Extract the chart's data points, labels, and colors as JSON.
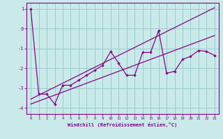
{
  "xlabel": "Windchill (Refroidissement éolien,°C)",
  "bg_color": "#caeaea",
  "line_color": "#880088",
  "grid_color": "#99cccc",
  "x_data": [
    0,
    1,
    2,
    3,
    4,
    5,
    6,
    7,
    8,
    9,
    10,
    11,
    12,
    13,
    14,
    15,
    16,
    17,
    18,
    19,
    20,
    21,
    22,
    23
  ],
  "y_main": [
    1.0,
    -3.3,
    -3.3,
    -3.8,
    -2.85,
    -2.85,
    -2.6,
    -2.35,
    -2.1,
    -1.85,
    -1.15,
    -1.75,
    -2.35,
    -2.35,
    -1.2,
    -1.2,
    -0.1,
    -2.25,
    -2.15,
    -1.55,
    -1.4,
    -1.1,
    -1.15,
    -1.35
  ],
  "y_upper": [
    -3.55,
    -3.35,
    -3.15,
    -2.95,
    -2.75,
    -2.55,
    -2.35,
    -2.15,
    -1.95,
    -1.75,
    -1.55,
    -1.35,
    -1.15,
    -0.95,
    -0.75,
    -0.55,
    -0.35,
    -0.15,
    0.05,
    0.25,
    0.45,
    0.65,
    0.85,
    1.05
  ],
  "y_lower": [
    -3.8,
    -3.65,
    -3.5,
    -3.35,
    -3.2,
    -3.05,
    -2.9,
    -2.75,
    -2.6,
    -2.45,
    -2.3,
    -2.15,
    -2.0,
    -1.85,
    -1.7,
    -1.55,
    -1.4,
    -1.25,
    -1.1,
    -0.95,
    -0.8,
    -0.65,
    -0.5,
    -0.35
  ],
  "ylim": [
    -4.3,
    1.3
  ],
  "xlim": [
    -0.5,
    23.5
  ],
  "yticks": [
    1,
    0,
    -1,
    -2,
    -3,
    -4
  ]
}
